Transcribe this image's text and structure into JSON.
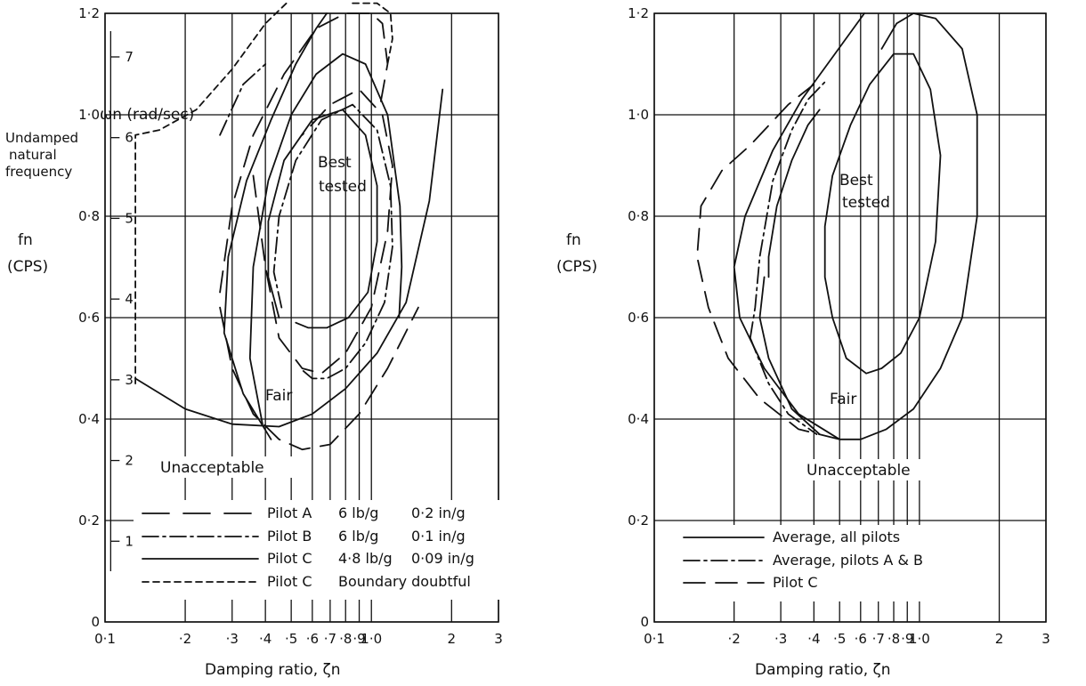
{
  "chart_data": [
    {
      "type": "line",
      "xscale": "log",
      "xlim": [
        0.1,
        3
      ],
      "ylim": [
        0,
        1.2
      ],
      "x_ticks": [
        "0·1",
        "·2",
        "·3",
        "·4",
        "·5",
        "·6",
        "·7",
        "·8",
        "·9",
        "1·0",
        "2",
        "3"
      ],
      "y_ticks": [
        "0",
        "0·2",
        "0·4",
        "0·6",
        "0·8",
        "1·0",
        "1·2"
      ],
      "secondary_y_ticks": [
        "1",
        "2",
        "3",
        "4",
        "5",
        "6",
        "7"
      ],
      "secondary_ylabel": "ωn (rad/sec)",
      "ylabel_side": [
        "Undamped",
        "natural",
        "frequency"
      ],
      "ylabel": [
        "fn",
        "(CPS)"
      ],
      "xlabel": "Damping ratio, ζn",
      "regions": [
        "Best",
        "tested",
        "Fair",
        "Unacceptable"
      ],
      "legend": [
        {
          "pilot": "Pilot A",
          "force": "6 lb/g",
          "displacement": "0·2 in/g",
          "style": "long-dash"
        },
        {
          "pilot": "Pilot B",
          "force": "6 lb/g",
          "displacement": "0·1 in/g",
          "style": "dash-dot"
        },
        {
          "pilot": "Pilot C",
          "force": "4·8 lb/g",
          "displacement": "0·09 in/g",
          "style": "solid"
        },
        {
          "pilot": "Pilot C",
          "force": "Boundary doubtful",
          "displacement": "",
          "style": "short-dash"
        }
      ],
      "series": [
        {
          "style": "solid",
          "points": [
            [
              0.13,
              0.48
            ],
            [
              0.2,
              0.42
            ],
            [
              0.3,
              0.39
            ],
            [
              0.45,
              0.385
            ],
            [
              0.6,
              0.41
            ],
            [
              0.8,
              0.46
            ],
            [
              1.05,
              0.53
            ],
            [
              1.35,
              0.63
            ],
            [
              1.65,
              0.83
            ],
            [
              1.85,
              1.05
            ]
          ]
        },
        {
          "style": "solid",
          "points": [
            [
              0.42,
              0.36
            ],
            [
              0.33,
              0.45
            ],
            [
              0.28,
              0.57
            ],
            [
              0.29,
              0.72
            ],
            [
              0.34,
              0.87
            ],
            [
              0.42,
              0.99
            ],
            [
              0.52,
              1.1
            ],
            [
              0.62,
              1.17
            ],
            [
              0.68,
              1.2
            ]
          ]
        },
        {
          "style": "solid",
          "points": [
            [
              0.39,
              0.39
            ],
            [
              0.35,
              0.52
            ],
            [
              0.36,
              0.7
            ],
            [
              0.41,
              0.87
            ],
            [
              0.5,
              1.0
            ],
            [
              0.62,
              1.08
            ],
            [
              0.78,
              1.12
            ],
            [
              0.95,
              1.1
            ],
            [
              1.15,
              1.0
            ],
            [
              1.28,
              0.82
            ],
            [
              1.3,
              0.7
            ],
            [
              1.27,
              0.6
            ]
          ]
        },
        {
          "style": "solid",
          "points": [
            [
              0.45,
              0.6
            ],
            [
              0.41,
              0.68
            ],
            [
              0.41,
              0.79
            ],
            [
              0.47,
              0.91
            ],
            [
              0.6,
              0.99
            ],
            [
              0.78,
              1.01
            ],
            [
              0.95,
              0.96
            ],
            [
              1.05,
              0.86
            ],
            [
              1.05,
              0.75
            ],
            [
              0.97,
              0.65
            ],
            [
              0.82,
              0.6
            ],
            [
              0.68,
              0.58
            ],
            [
              0.58,
              0.58
            ],
            [
              0.52,
              0.59
            ]
          ]
        },
        {
          "style": "long-dash",
          "points": [
            [
              0.27,
              0.65
            ],
            [
              0.3,
              0.82
            ],
            [
              0.36,
              0.96
            ],
            [
              0.47,
              1.08
            ],
            [
              0.62,
              1.17
            ],
            [
              0.8,
              1.2
            ],
            [
              1.0,
              1.2
            ],
            [
              1.1,
              1.18
            ],
            [
              1.15,
              1.1
            ],
            [
              1.08,
              1.02
            ]
          ]
        },
        {
          "style": "long-dash",
          "points": [
            [
              0.27,
              0.62
            ],
            [
              0.3,
              0.5
            ],
            [
              0.36,
              0.41
            ],
            [
              0.45,
              0.36
            ],
            [
              0.55,
              0.34
            ],
            [
              0.7,
              0.35
            ],
            [
              0.9,
              0.41
            ],
            [
              1.15,
              0.5
            ],
            [
              1.5,
              0.62
            ]
          ]
        },
        {
          "style": "long-dash",
          "points": [
            [
              0.36,
              0.88
            ],
            [
              0.4,
              0.7
            ],
            [
              0.45,
              0.56
            ],
            [
              0.55,
              0.5
            ],
            [
              0.65,
              0.49
            ],
            [
              0.8,
              0.53
            ],
            [
              1.0,
              0.62
            ],
            [
              1.15,
              0.77
            ],
            [
              1.2,
              0.9
            ],
            [
              1.1,
              1.0
            ],
            [
              0.9,
              1.05
            ],
            [
              0.7,
              1.02
            ],
            [
              0.55,
              0.96
            ]
          ]
        },
        {
          "style": "dash-dot",
          "points": [
            [
              0.46,
              0.62
            ],
            [
              0.43,
              0.69
            ],
            [
              0.45,
              0.8
            ],
            [
              0.52,
              0.91
            ],
            [
              0.65,
              0.99
            ],
            [
              0.85,
              1.02
            ],
            [
              1.05,
              0.97
            ],
            [
              1.18,
              0.86
            ],
            [
              1.2,
              0.74
            ],
            [
              1.12,
              0.63
            ],
            [
              0.95,
              0.55
            ],
            [
              0.8,
              0.5
            ],
            [
              0.68,
              0.48
            ],
            [
              0.6,
              0.48
            ],
            [
              0.54,
              0.5
            ]
          ]
        },
        {
          "style": "dash-dot",
          "points": [
            [
              0.27,
              0.96
            ],
            [
              0.33,
              1.06
            ],
            [
              0.4,
              1.1
            ]
          ]
        },
        {
          "style": "short-dash",
          "points": [
            [
              0.13,
              0.47
            ],
            [
              0.13,
              0.96
            ],
            [
              0.16,
              0.97
            ],
            [
              0.22,
              1.01
            ],
            [
              0.3,
              1.09
            ],
            [
              0.4,
              1.18
            ],
            [
              0.48,
              1.22
            ]
          ]
        },
        {
          "style": "short-dash",
          "points": [
            [
              0.85,
              1.22
            ],
            [
              1.05,
              1.22
            ],
            [
              1.18,
              1.2
            ],
            [
              1.2,
              1.15
            ],
            [
              1.15,
              1.1
            ]
          ]
        }
      ]
    },
    {
      "type": "line",
      "xscale": "log",
      "xlim": [
        0.1,
        3
      ],
      "ylim": [
        0,
        1.2
      ],
      "x_ticks": [
        "0·1",
        "·2",
        "·3",
        "·4",
        "·5",
        "·6",
        "·7",
        "·8",
        "·9",
        "1·0",
        "2",
        "3"
      ],
      "y_ticks": [
        "0",
        "0·2",
        "0·4",
        "0·6",
        "0·8",
        "1·0",
        "1·2"
      ],
      "ylabel": [
        "fn",
        "(CPS)"
      ],
      "xlabel": "Damping ratio, ζn",
      "regions": [
        "Best",
        "tested",
        "Fair",
        "Unacceptable"
      ],
      "legend": [
        {
          "label": "Average, all pilots",
          "style": "solid"
        },
        {
          "label": "Average, pilots A & B",
          "style": "dash-dot"
        },
        {
          "label": "Pilot C",
          "style": "long-dash"
        }
      ],
      "series": [
        {
          "style": "solid",
          "points": [
            [
              0.5,
              0.36
            ],
            [
              0.35,
              0.41
            ],
            [
              0.26,
              0.5
            ],
            [
              0.21,
              0.6
            ],
            [
              0.2,
              0.7
            ],
            [
              0.22,
              0.8
            ],
            [
              0.28,
              0.93
            ],
            [
              0.36,
              1.03
            ],
            [
              0.48,
              1.12
            ],
            [
              0.62,
              1.2
            ]
          ]
        },
        {
          "style": "solid",
          "points": [
            [
              0.5,
              0.36
            ],
            [
              0.6,
              0.36
            ],
            [
              0.75,
              0.38
            ],
            [
              0.95,
              0.42
            ],
            [
              1.2,
              0.5
            ],
            [
              1.45,
              0.6
            ],
            [
              1.65,
              0.8
            ],
            [
              1.65,
              1.0
            ],
            [
              1.45,
              1.13
            ],
            [
              1.15,
              1.19
            ],
            [
              0.95,
              1.2
            ],
            [
              0.82,
              1.18
            ],
            [
              0.72,
              1.13
            ]
          ]
        },
        {
          "style": "solid",
          "points": [
            [
              0.63,
              0.49
            ],
            [
              0.72,
              0.5
            ],
            [
              0.85,
              0.53
            ],
            [
              1.0,
              0.6
            ],
            [
              1.15,
              0.75
            ],
            [
              1.2,
              0.92
            ],
            [
              1.1,
              1.05
            ],
            [
              0.95,
              1.12
            ],
            [
              0.8,
              1.12
            ],
            [
              0.65,
              1.06
            ],
            [
              0.55,
              0.98
            ],
            [
              0.47,
              0.88
            ],
            [
              0.44,
              0.78
            ],
            [
              0.44,
              0.68
            ],
            [
              0.47,
              0.6
            ],
            [
              0.53,
              0.52
            ],
            [
              0.63,
              0.49
            ]
          ]
        },
        {
          "style": "solid",
          "points": [
            [
              0.27,
              0.68
            ],
            [
              0.27,
              0.72
            ],
            [
              0.29,
              0.82
            ],
            [
              0.33,
              0.91
            ],
            [
              0.38,
              0.98
            ],
            [
              0.42,
              1.01
            ]
          ]
        },
        {
          "style": "solid",
          "points": [
            [
              0.42,
              0.37
            ],
            [
              0.33,
              0.42
            ],
            [
              0.27,
              0.52
            ],
            [
              0.25,
              0.6
            ],
            [
              0.26,
              0.68
            ]
          ]
        },
        {
          "style": "dash-dot",
          "points": [
            [
              0.23,
              0.56
            ],
            [
              0.24,
              0.62
            ],
            [
              0.25,
              0.72
            ],
            [
              0.28,
              0.87
            ],
            [
              0.33,
              0.97
            ],
            [
              0.38,
              1.03
            ],
            [
              0.45,
              1.07
            ]
          ]
        },
        {
          "style": "dash-dot",
          "points": [
            [
              0.23,
              0.56
            ],
            [
              0.27,
              0.47
            ],
            [
              0.32,
              0.41
            ],
            [
              0.41,
              0.37
            ]
          ]
        },
        {
          "style": "long-dash",
          "points": [
            [
              0.5,
              0.36
            ],
            [
              0.35,
              0.38
            ],
            [
              0.25,
              0.44
            ],
            [
              0.19,
              0.52
            ],
            [
              0.16,
              0.62
            ],
            [
              0.145,
              0.72
            ],
            [
              0.15,
              0.82
            ],
            [
              0.18,
              0.89
            ],
            [
              0.23,
              0.94
            ],
            [
              0.32,
              1.02
            ],
            [
              0.4,
              1.06
            ]
          ]
        }
      ]
    }
  ]
}
